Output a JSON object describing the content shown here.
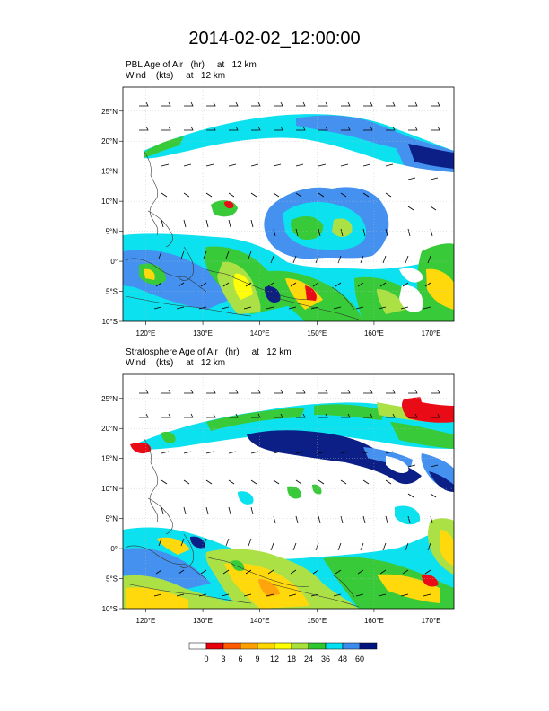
{
  "title": "2014-02-02_12:00:00",
  "panels": [
    {
      "field_label": "PBL Age of Air   (hr)     at   12 km",
      "wind_label": "Wind    (kts)     at   12 km"
    },
    {
      "field_label": "Stratosphere Age of Air   (hr)     at   12 km",
      "wind_label": "Wind    (kts)     at   12 km"
    }
  ],
  "axes": {
    "lat_labels": [
      "25°N",
      "20°N",
      "15°N",
      "10°N",
      "5°N",
      "0°",
      "5°S",
      "10°S"
    ],
    "lon_labels": [
      "120°E",
      "130°E",
      "140°E",
      "150°E",
      "160°E",
      "170°E"
    ],
    "lat_values": [
      25,
      20,
      15,
      10,
      5,
      0,
      -5,
      -10
    ],
    "lon_values": [
      120,
      130,
      140,
      150,
      160,
      170
    ],
    "lat_range": [
      -10,
      29
    ],
    "lon_range": [
      116,
      174
    ]
  },
  "colorbar": {
    "labels": [
      "0",
      "3",
      "6",
      "9",
      "12",
      "18",
      "24",
      "36",
      "48",
      "60"
    ],
    "colors": [
      "#ffffff",
      "#e8000b",
      "#ff5a00",
      "#ffa000",
      "#ffd700",
      "#ffff00",
      "#a8e03c",
      "#2ec82e",
      "#00e0f0",
      "#3c8cf0",
      "#001480"
    ]
  }
}
